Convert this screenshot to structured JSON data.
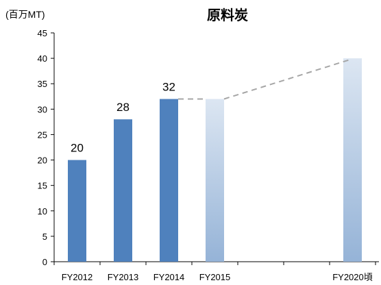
{
  "chart_data": {
    "type": "bar",
    "title": "原料炭",
    "unit_label": "(百万MT)",
    "categories": [
      "FY2012",
      "FY2013",
      "FY2014",
      "FY2015",
      "FY2020頃"
    ],
    "values": [
      20,
      28,
      32,
      32,
      40
    ],
    "data_labels": [
      "20",
      "28",
      "32",
      "",
      ""
    ],
    "ylim": [
      0,
      45
    ],
    "yticks": [
      0,
      5,
      10,
      15,
      20,
      25,
      30,
      35,
      40,
      45
    ],
    "grid": false,
    "legend": "none",
    "colors": {
      "actual": "#4f81bd",
      "forecast_top": "#dce6f2",
      "forecast_bottom": "#95b3d7",
      "trend": "#a6a6a6"
    }
  }
}
